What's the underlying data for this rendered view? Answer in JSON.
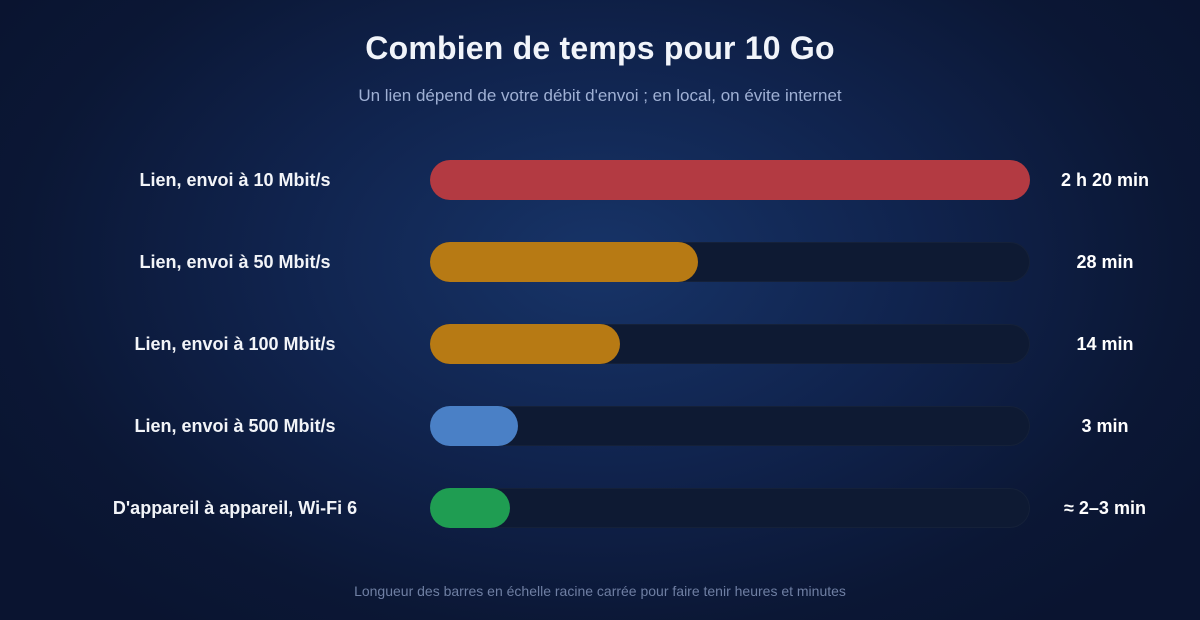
{
  "chart_data": {
    "type": "bar",
    "orientation": "horizontal",
    "title": "Combien de temps pour 10 Go",
    "subtitle": "Un lien dépend de votre débit d'envoi ; en local, on évite internet",
    "footnote": "Longueur des barres en échelle racine carrée pour faire tenir heures et minutes",
    "scale": "sqrt",
    "unit": "min",
    "categories": [
      "Lien, envoi à 10 Mbit/s",
      "Lien, envoi à 50 Mbit/s",
      "Lien, envoi à 100 Mbit/s",
      "Lien, envoi à 500 Mbit/s",
      "D'appareil à appareil, Wi-Fi 6"
    ],
    "values": [
      140,
      28,
      14,
      3,
      2.5
    ],
    "value_labels": [
      "2 h 20 min",
      "28 min",
      "14 min",
      "3 min",
      "≈ 2–3 min"
    ],
    "bar_colors": [
      "#b33a42",
      "#b77a14",
      "#b77a14",
      "#4a80c6",
      "#1f9d52"
    ]
  }
}
